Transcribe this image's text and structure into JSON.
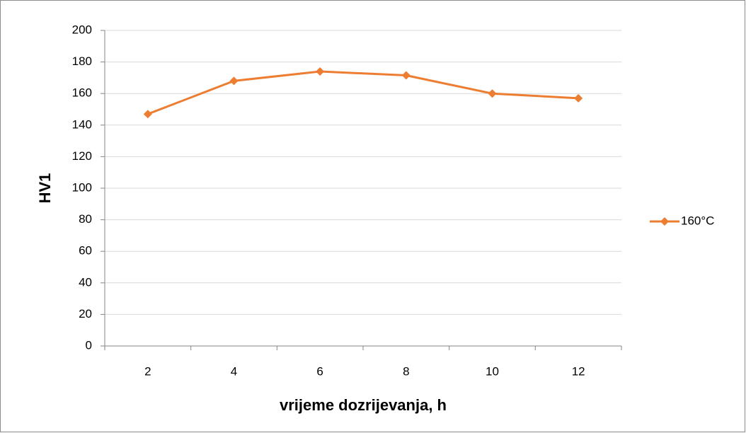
{
  "chart_data": {
    "type": "line",
    "x_label": "vrijeme dozrijevanja, h",
    "y_label": "HV1",
    "categories": [
      "2",
      "4",
      "6",
      "8",
      "10",
      "12"
    ],
    "series": [
      {
        "name": "160°C",
        "color": "#ed7d31",
        "values": [
          147,
          168,
          174,
          171.5,
          160,
          157
        ]
      }
    ],
    "ylim": [
      0,
      200
    ],
    "yticks": [
      0,
      20,
      40,
      60,
      80,
      100,
      120,
      140,
      160,
      180,
      200
    ],
    "grid": true,
    "legend": "right"
  }
}
